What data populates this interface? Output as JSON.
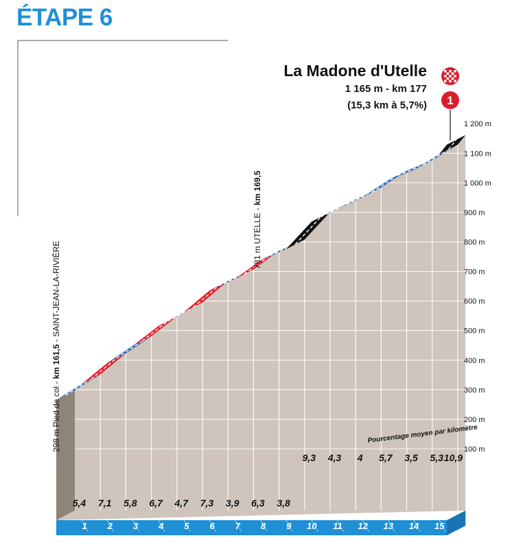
{
  "stage_title": "ÉTAPE 6",
  "summit": {
    "name": "La Madone d'Utelle",
    "altitude_km": "1 165 m - km 177",
    "climb": "(15,3 km à 5,7%)",
    "icon_number": "1",
    "finish_icon": "checkered-flag-icon"
  },
  "labels": {
    "start_plain": "298 m Pied de col - ",
    "start_bold": "km 161,5",
    "start_place": " - SAINT-JEAN-LA-RIVIÈRE",
    "utelle_plain": "781 m UTELLE - ",
    "utelle_bold": "km 169,5",
    "gradient_note": "Pourcentage moyen par kilomètre"
  },
  "colors": {
    "title": "#1f8fd6",
    "terrain": "#cfc5bc",
    "gridline": "#ffffff",
    "band_blue": "#1d5cab",
    "band_red": "#e5202e",
    "band_black": "#111111",
    "km_bar": "#1f8fd6",
    "summit_red": "#d81e2c"
  },
  "chart_data": {
    "type": "area",
    "title": "ÉTAPE 6",
    "ylabel": "",
    "xlabel": "",
    "ylim": [
      100,
      1200
    ],
    "y_ticks": [
      "100 m",
      "200 m",
      "300 m",
      "400 m",
      "500 m",
      "600 m",
      "700 m",
      "800 m",
      "900 m",
      "1 000 m",
      "1 100 m",
      "1 200 m"
    ],
    "km_labels": [
      "1",
      "2",
      "3",
      "4",
      "5",
      "6",
      "7",
      "8",
      "9",
      "10",
      "11",
      "12",
      "13",
      "14",
      "15"
    ],
    "gradient_labels": [
      "5,4",
      "7,1",
      "5,8",
      "6,7",
      "4,7",
      "7,3",
      "3,9",
      "6,3",
      "3,8",
      "9,3",
      "4,3",
      "4",
      "5,7",
      "3,5",
      "5,3",
      "10,9"
    ],
    "gradients": [
      5.4,
      7.1,
      5.8,
      6.7,
      4.7,
      7.3,
      3.9,
      6.3,
      3.8,
      9.3,
      4.3,
      4,
      5.7,
      3.5,
      5.3,
      10.9
    ],
    "segment_length_km": [
      1,
      1,
      1,
      1,
      1,
      1,
      1,
      1,
      1,
      1,
      1,
      1,
      1,
      1,
      1,
      0.3
    ],
    "band_class": [
      "blue",
      "red",
      "blue",
      "red",
      "blue",
      "red",
      "blue",
      "red",
      "blue",
      "black",
      "blue",
      "blue",
      "blue",
      "blue",
      "blue",
      "black"
    ],
    "start_altitude_m": 298,
    "summit_altitude_m": 1165,
    "x_range_km": [
      0,
      15.3
    ],
    "grid": true
  }
}
